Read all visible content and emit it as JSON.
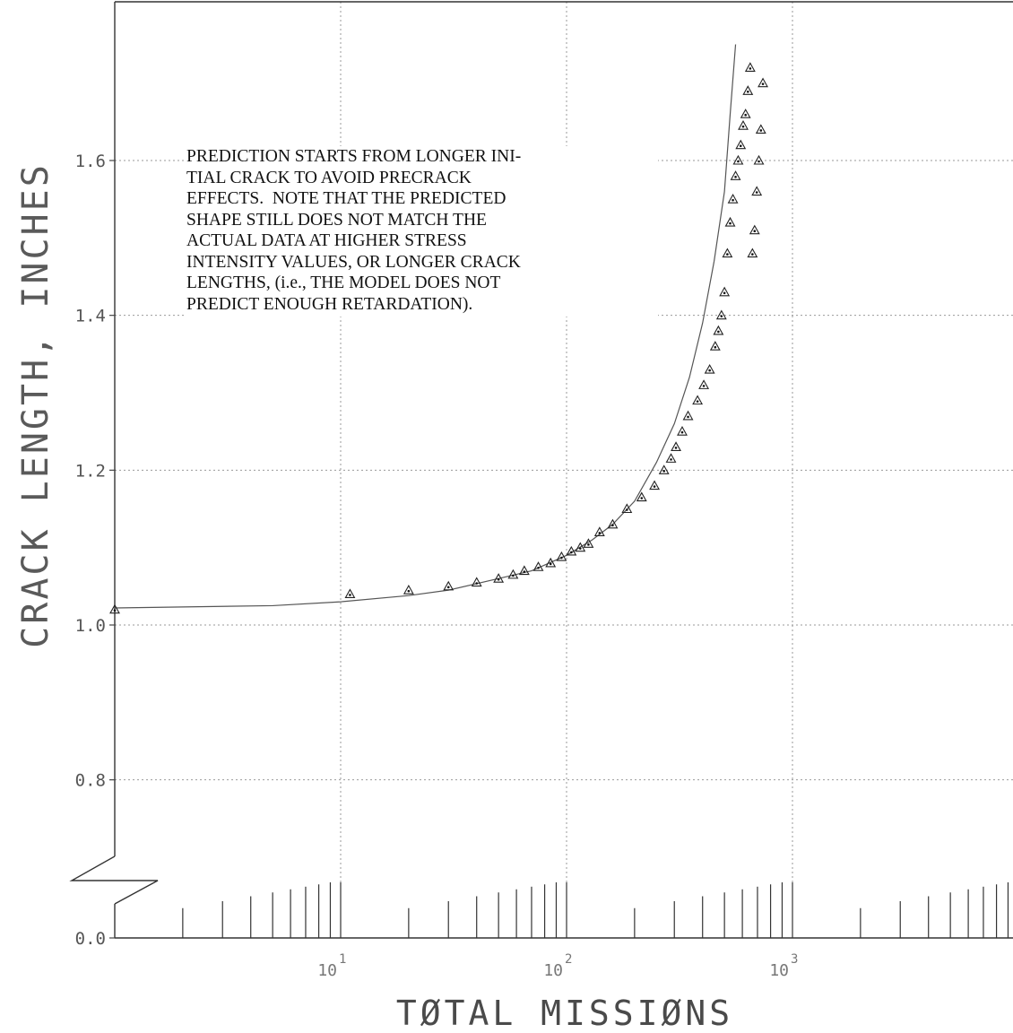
{
  "chart_data": {
    "type": "scatter",
    "title": "",
    "xlabel": "TØTAL MISSIØNS",
    "ylabel": "CRACK LENGTH, INCHES",
    "x_scale": "log",
    "xlim": [
      1,
      1000
    ],
    "ylim": [
      0.0,
      1.75
    ],
    "y_break": [
      0.0,
      0.7
    ],
    "x_ticks": [
      {
        "value": 10,
        "base": "10",
        "exp": "1"
      },
      {
        "value": 100,
        "base": "10",
        "exp": "2"
      },
      {
        "value": 1000,
        "base": "10",
        "exp": "3"
      }
    ],
    "y_ticks": [
      "1.6",
      "1.4",
      "1.2",
      "1.0",
      "0.8",
      "0.0"
    ],
    "y_tick_values": [
      1.6,
      1.4,
      1.2,
      1.0,
      0.8,
      0.0
    ],
    "grid": true,
    "series": [
      {
        "kind": "line",
        "x": [
          1,
          5,
          10,
          20,
          30,
          50,
          70,
          100,
          130,
          160,
          200,
          250,
          300,
          350,
          400,
          450,
          500,
          530,
          560
        ],
        "y": [
          1.022,
          1.025,
          1.03,
          1.038,
          1.045,
          1.06,
          1.07,
          1.09,
          1.11,
          1.13,
          1.16,
          1.21,
          1.26,
          1.32,
          1.39,
          1.47,
          1.56,
          1.66,
          1.75
        ]
      },
      {
        "kind": "points",
        "marker": "triangle",
        "x": [
          1,
          11,
          20,
          30,
          40,
          50,
          58,
          65,
          75,
          85,
          95,
          105,
          115,
          125,
          140,
          160,
          185,
          215,
          245,
          270,
          290,
          305,
          325,
          345,
          380,
          405,
          430,
          455,
          470,
          485,
          500,
          515,
          530,
          545,
          560,
          575,
          590,
          605,
          620,
          635,
          650,
          665,
          680,
          695,
          710,
          725,
          740
        ],
        "y": [
          1.02,
          1.04,
          1.045,
          1.05,
          1.055,
          1.06,
          1.065,
          1.07,
          1.075,
          1.08,
          1.088,
          1.095,
          1.1,
          1.105,
          1.12,
          1.13,
          1.15,
          1.165,
          1.18,
          1.2,
          1.215,
          1.23,
          1.25,
          1.27,
          1.29,
          1.31,
          1.33,
          1.36,
          1.38,
          1.4,
          1.43,
          1.48,
          1.52,
          1.55,
          1.58,
          1.6,
          1.62,
          1.645,
          1.66,
          1.69,
          1.72,
          1.48,
          1.51,
          1.56,
          1.6,
          1.64,
          1.7
        ]
      }
    ]
  },
  "annotation": {
    "lines": [
      "PREDICTION STARTS FROM LONGER INI-",
      "TIAL CRACK TO AVOID PRECRACK",
      "EFFECTS.  NOTE THAT THE PREDICTED",
      "SHAPE STILL DOES NOT MATCH THE",
      "ACTUAL DATA AT HIGHER STRESS",
      "INTENSITY VALUES, OR LONGER CRACK",
      "LENGTHS, (i.e., THE MODEL DOES NOT",
      "PREDICT ENOUGH RETARDATION)."
    ]
  }
}
